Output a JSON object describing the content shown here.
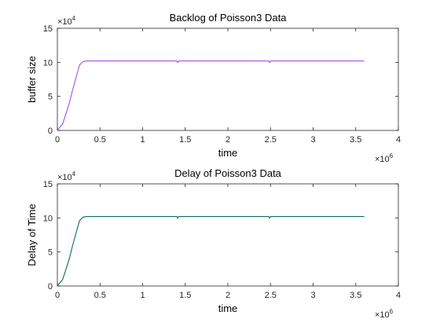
{
  "colors": {
    "backlog_line": "#a94fe8",
    "delay_line": "#0e6e5c",
    "axis": "#262626"
  },
  "chart_data": [
    {
      "type": "line",
      "title": "Backlog of Poisson3 Data",
      "xlabel": "time",
      "ylabel": "buffer size",
      "x_multiplier_base": "×10",
      "x_multiplier_exp": "6",
      "y_multiplier_base": "×10",
      "y_multiplier_exp": "4",
      "xlim": [
        0,
        4
      ],
      "ylim": [
        0,
        15
      ],
      "x_ticks": [
        "0",
        "0.5",
        "1",
        "1.5",
        "2",
        "2.5",
        "3",
        "3.5",
        "4"
      ],
      "y_ticks": [
        "0",
        "5",
        "10",
        "15"
      ],
      "grid": false,
      "series": [
        {
          "color": "#a94fe8",
          "x": [
            0,
            0.03,
            0.06,
            0.1,
            0.14,
            0.18,
            0.22,
            0.26,
            0.3,
            0.34,
            0.5,
            0.8,
            1.0,
            1.2,
            1.4,
            1.41,
            1.42,
            1.6,
            1.8,
            2.0,
            2.2,
            2.4,
            2.48,
            2.49,
            2.5,
            2.7,
            3.0,
            3.3,
            3.6
          ],
          "values": [
            0,
            0.5,
            0.9,
            2.4,
            4.0,
            6.0,
            7.8,
            9.6,
            10.1,
            10.2,
            10.2,
            10.2,
            10.2,
            10.2,
            10.2,
            9.95,
            10.2,
            10.2,
            10.2,
            10.2,
            10.2,
            10.2,
            10.2,
            9.95,
            10.2,
            10.2,
            10.2,
            10.2,
            10.2
          ]
        }
      ]
    },
    {
      "type": "line",
      "title": "Delay of Poisson3 Data",
      "xlabel": "time",
      "ylabel": "Delay of Time",
      "x_multiplier_base": "×10",
      "x_multiplier_exp": "6",
      "y_multiplier_base": "×10",
      "y_multiplier_exp": "4",
      "xlim": [
        0,
        4
      ],
      "ylim": [
        0,
        15
      ],
      "x_ticks": [
        "0",
        "0.5",
        "1",
        "1.5",
        "2",
        "2.5",
        "3",
        "3.5",
        "4"
      ],
      "y_ticks": [
        "0",
        "5",
        "10",
        "15"
      ],
      "grid": false,
      "series": [
        {
          "color": "#0e6e5c",
          "x": [
            0,
            0.03,
            0.06,
            0.1,
            0.14,
            0.18,
            0.22,
            0.26,
            0.3,
            0.34,
            0.5,
            0.8,
            1.0,
            1.2,
            1.4,
            1.41,
            1.42,
            1.6,
            1.8,
            2.0,
            2.2,
            2.4,
            2.48,
            2.49,
            2.5,
            2.7,
            3.0,
            3.3,
            3.6
          ],
          "values": [
            0,
            0.5,
            0.9,
            2.4,
            4.0,
            6.0,
            7.8,
            9.6,
            10.1,
            10.2,
            10.2,
            10.2,
            10.2,
            10.2,
            10.2,
            9.95,
            10.2,
            10.2,
            10.2,
            10.2,
            10.2,
            10.2,
            10.2,
            9.95,
            10.2,
            10.2,
            10.2,
            10.2,
            10.2
          ]
        }
      ]
    }
  ]
}
